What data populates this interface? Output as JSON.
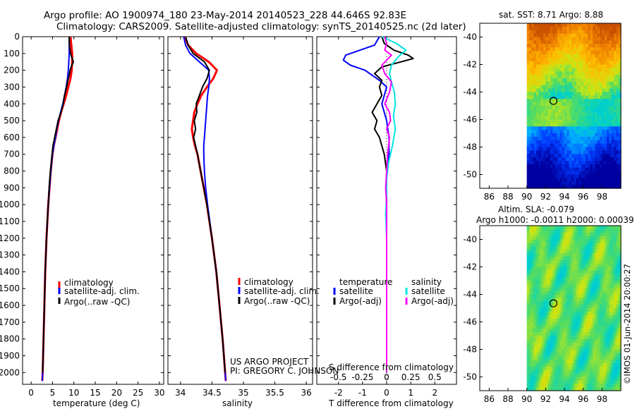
{
  "header": {
    "line1": "Argo profile: AO 1900974_180 23-May-2014 20140523_228 44.646S 92.83E",
    "line2": "Climatology: CARS2009. Satellite-adjusted climatology: synTS_20140525.nc (2d later)"
  },
  "colors": {
    "climatology": "#ff0000",
    "satellite": "#0000ff",
    "argo": "#000000",
    "satellite_salinity": "#00e5e5",
    "argo_salinity": "#ff00ff",
    "zero_line": "#000000"
  },
  "credits": {
    "line1": "US ARGO PROJECT",
    "line2": "PI: GREGORY C. JOHNSON"
  },
  "chart_data": [
    {
      "id": "temperature-panel",
      "type": "line",
      "xlabel": "temperature (deg C)",
      "xlim": [
        -2,
        31
      ],
      "xticks": [
        0,
        5,
        10,
        15,
        20,
        25,
        30
      ],
      "ylim": [
        0,
        2070
      ],
      "yticks": [
        0,
        100,
        200,
        300,
        400,
        500,
        600,
        700,
        800,
        900,
        1000,
        1100,
        1200,
        1300,
        1400,
        1500,
        1600,
        1700,
        1800,
        1900,
        2000
      ],
      "legend": [
        "climatology",
        "satellite-adj. clim.",
        "Argo(..raw -QC)"
      ],
      "series": [
        {
          "name": "climatology",
          "color": "#ff0000",
          "width": 3,
          "depth": [
            0,
            50,
            100,
            150,
            200,
            250,
            300,
            350,
            400,
            450,
            500,
            550,
            600,
            650,
            700,
            800,
            900,
            1000,
            1200,
            1400,
            1600,
            1800,
            2000,
            2050
          ],
          "values": [
            9.2,
            9.4,
            9.6,
            9.6,
            9.5,
            9.2,
            8.7,
            8.2,
            7.6,
            7.0,
            6.5,
            6.1,
            5.7,
            5.3,
            5.0,
            4.6,
            4.3,
            4.0,
            3.6,
            3.3,
            3.1,
            2.9,
            2.7,
            2.6
          ]
        },
        {
          "name": "satellite-adj. clim.",
          "color": "#0000ff",
          "width": 2,
          "depth": [
            0,
            50,
            100,
            150,
            200,
            250,
            300,
            350,
            400,
            450,
            500,
            550,
            600,
            650,
            700,
            800,
            900,
            1000,
            1200,
            1400,
            1600,
            1800,
            2000,
            2050
          ],
          "values": [
            8.9,
            8.9,
            8.9,
            8.8,
            8.7,
            8.5,
            8.2,
            7.8,
            7.4,
            6.9,
            6.4,
            6.0,
            5.7,
            5.3,
            5.0,
            4.6,
            4.3,
            4.0,
            3.6,
            3.3,
            3.1,
            2.9,
            2.7,
            2.6
          ]
        },
        {
          "name": "Argo(..raw -QC)",
          "color": "#000000",
          "width": 2,
          "depth": [
            0,
            30,
            60,
            100,
            130,
            150,
            170,
            200,
            230,
            260,
            300,
            350,
            400,
            450,
            500,
            550,
            600,
            650,
            700,
            800,
            900,
            1000,
            1200,
            1400,
            1600,
            1800,
            2000
          ],
          "values": [
            8.9,
            8.9,
            9.0,
            9.2,
            9.6,
            9.9,
            9.5,
            9.1,
            8.9,
            8.6,
            8.3,
            7.8,
            7.5,
            7.0,
            6.3,
            5.9,
            5.5,
            5.1,
            4.9,
            4.5,
            4.2,
            4.0,
            3.6,
            3.3,
            3.1,
            2.9,
            2.7
          ]
        }
      ]
    },
    {
      "id": "salinity-panel",
      "type": "line",
      "xlabel": "salinity",
      "xlim": [
        33.8,
        36.1
      ],
      "xticks": [
        34,
        34.5,
        35,
        35.5,
        36
      ],
      "ylim": [
        0,
        2070
      ],
      "legend": [
        "climatology",
        "satellite-adj. clim.",
        "Argo(..raw -QC)"
      ],
      "series": [
        {
          "name": "climatology",
          "color": "#ff0000",
          "width": 3,
          "depth": [
            0,
            50,
            100,
            150,
            200,
            250,
            300,
            350,
            400,
            450,
            500,
            550,
            600,
            650,
            700,
            800,
            900,
            1000,
            1200,
            1400,
            1600,
            1800,
            2000,
            2050
          ],
          "values": [
            34.07,
            34.12,
            34.25,
            34.45,
            34.58,
            34.52,
            34.42,
            34.33,
            34.27,
            34.22,
            34.2,
            34.18,
            34.2,
            34.23,
            34.27,
            34.32,
            34.37,
            34.42,
            34.5,
            34.57,
            34.62,
            34.67,
            34.71,
            34.72
          ]
        },
        {
          "name": "satellite-adj. clim.",
          "color": "#0000ff",
          "width": 2,
          "depth": [
            0,
            50,
            100,
            150,
            200,
            250,
            300,
            350,
            400,
            450,
            500,
            550,
            600,
            650,
            700,
            800,
            900,
            1000,
            1200,
            1400,
            1600,
            1800,
            2000,
            2050
          ],
          "values": [
            34.05,
            34.08,
            34.15,
            34.3,
            34.45,
            34.46,
            34.45,
            34.43,
            34.42,
            34.41,
            34.4,
            34.39,
            34.38,
            34.37,
            34.37,
            34.38,
            34.4,
            34.43,
            34.5,
            34.57,
            34.62,
            34.67,
            34.71,
            34.72
          ]
        },
        {
          "name": "Argo(..raw -QC)",
          "color": "#000000",
          "width": 2,
          "depth": [
            0,
            50,
            100,
            150,
            200,
            250,
            300,
            350,
            400,
            450,
            500,
            550,
            600,
            650,
            700,
            800,
            900,
            1000,
            1200,
            1400,
            1600,
            1800,
            2000
          ],
          "values": [
            34.08,
            34.12,
            34.2,
            34.38,
            34.46,
            34.42,
            34.35,
            34.3,
            34.25,
            34.26,
            34.22,
            34.24,
            34.21,
            34.24,
            34.27,
            34.32,
            34.37,
            34.42,
            34.5,
            34.57,
            34.62,
            34.67,
            34.71
          ]
        }
      ]
    },
    {
      "id": "difference-panel",
      "type": "line",
      "xlabel": "T difference from climatology",
      "xlabel2": "S difference from climatology",
      "xlim": [
        -2.9,
        2.9
      ],
      "xticks": [
        -2,
        -1,
        0,
        1,
        2
      ],
      "xticks2": [
        -0.5,
        -0.25,
        0,
        0.25,
        0.5
      ],
      "xticks2_labels": [
        "-0.5",
        "-0.25",
        "0",
        "0.25",
        "0.5"
      ],
      "ylim": [
        0,
        2070
      ],
      "legend_headers": [
        "temperature",
        "salinity"
      ],
      "legend": [
        "satellite",
        "Argo(-adj)",
        "satellite",
        "Argo(-adj)"
      ],
      "series": [
        {
          "name": "temperature satellite",
          "color": "#0000ff",
          "width": 2,
          "depth": [
            0,
            50,
            80,
            110,
            140,
            170,
            200,
            230,
            260,
            300,
            350,
            400,
            450,
            500,
            600,
            700,
            800,
            900,
            1000,
            1200,
            1500,
            2000
          ],
          "values": [
            -0.3,
            -0.5,
            -1.1,
            -1.7,
            -1.8,
            -1.5,
            -0.9,
            -0.6,
            -0.3,
            0.0,
            -0.1,
            -0.2,
            -0.1,
            0.0,
            0.1,
            0.1,
            0.0,
            0.0,
            0.0,
            0.0,
            0.0,
            0.0
          ]
        },
        {
          "name": "temperature Argo(-adj)",
          "color": "#000000",
          "width": 2,
          "depth": [
            0,
            40,
            80,
            110,
            130,
            150,
            180,
            220,
            260,
            300,
            350,
            400,
            450,
            500,
            550,
            600,
            650,
            700,
            800,
            900,
            1000,
            1200,
            1500,
            2000
          ],
          "values": [
            -0.2,
            -0.1,
            0.3,
            0.9,
            1.1,
            0.6,
            -0.2,
            -0.5,
            -0.2,
            -0.3,
            -0.2,
            -0.4,
            -0.6,
            -0.4,
            -0.5,
            -0.3,
            -0.2,
            -0.1,
            0.0,
            0.0,
            0.0,
            0.0,
            0.0,
            0.0
          ]
        },
        {
          "name": "salinity satellite",
          "color": "#00e5e5",
          "width": 2,
          "depth": [
            0,
            40,
            80,
            120,
            170,
            220,
            270,
            330,
            400,
            470,
            550,
            650,
            750,
            850,
            950,
            1050,
            1200,
            1500,
            2000
          ],
          "values": [
            -0.05,
            0.1,
            0.2,
            0.12,
            0.05,
            0.03,
            0.05,
            0.08,
            0.09,
            0.07,
            0.09,
            0.06,
            0.02,
            0.0,
            0.0,
            -0.01,
            0.0,
            0.0,
            0.0
          ]
        },
        {
          "name": "salinity Argo(-adj)",
          "color": "#ff00ff",
          "width": 2,
          "depth": [
            0,
            40,
            80,
            110,
            140,
            170,
            220,
            270,
            330,
            400,
            450,
            500,
            550,
            600,
            700,
            800,
            900,
            1000,
            1200,
            1500,
            2000
          ],
          "values": [
            -0.02,
            0.0,
            -0.02,
            0.05,
            0.0,
            -0.05,
            -0.02,
            0.05,
            0.03,
            -0.02,
            0.03,
            0.04,
            0.0,
            0.03,
            0.01,
            0.0,
            -0.01,
            0.0,
            0.0,
            0.0,
            0.0
          ]
        }
      ]
    },
    {
      "id": "sst-map",
      "type": "heatmap",
      "title": "sat. SST: 8.71 Argo: 8.88",
      "xlim": [
        85,
        100
      ],
      "ylim": [
        -51,
        -39
      ],
      "xticks": [
        86,
        88,
        90,
        92,
        94,
        96,
        98
      ],
      "yticks": [
        -40,
        -42,
        -44,
        -46,
        -48,
        -50
      ],
      "data_xlim": [
        90,
        100
      ],
      "marker": {
        "lon": 92.83,
        "lat": -44.646
      }
    },
    {
      "id": "sla-map",
      "type": "heatmap",
      "title": "Altim. SLA: -0.079",
      "subtitle": "Argo h1000: -0.0011 h2000: 0.00039",
      "xlim": [
        85,
        100
      ],
      "ylim": [
        -51,
        -39
      ],
      "xticks": [
        86,
        88,
        90,
        92,
        94,
        96,
        98
      ],
      "yticks": [
        -40,
        -42,
        -44,
        -46,
        -48,
        -50
      ],
      "data_xlim": [
        90,
        100
      ],
      "marker": {
        "lon": 92.83,
        "lat": -44.646
      }
    }
  ],
  "imos_stamp": "©IMOS 01-Jun-2014 20:00:27"
}
